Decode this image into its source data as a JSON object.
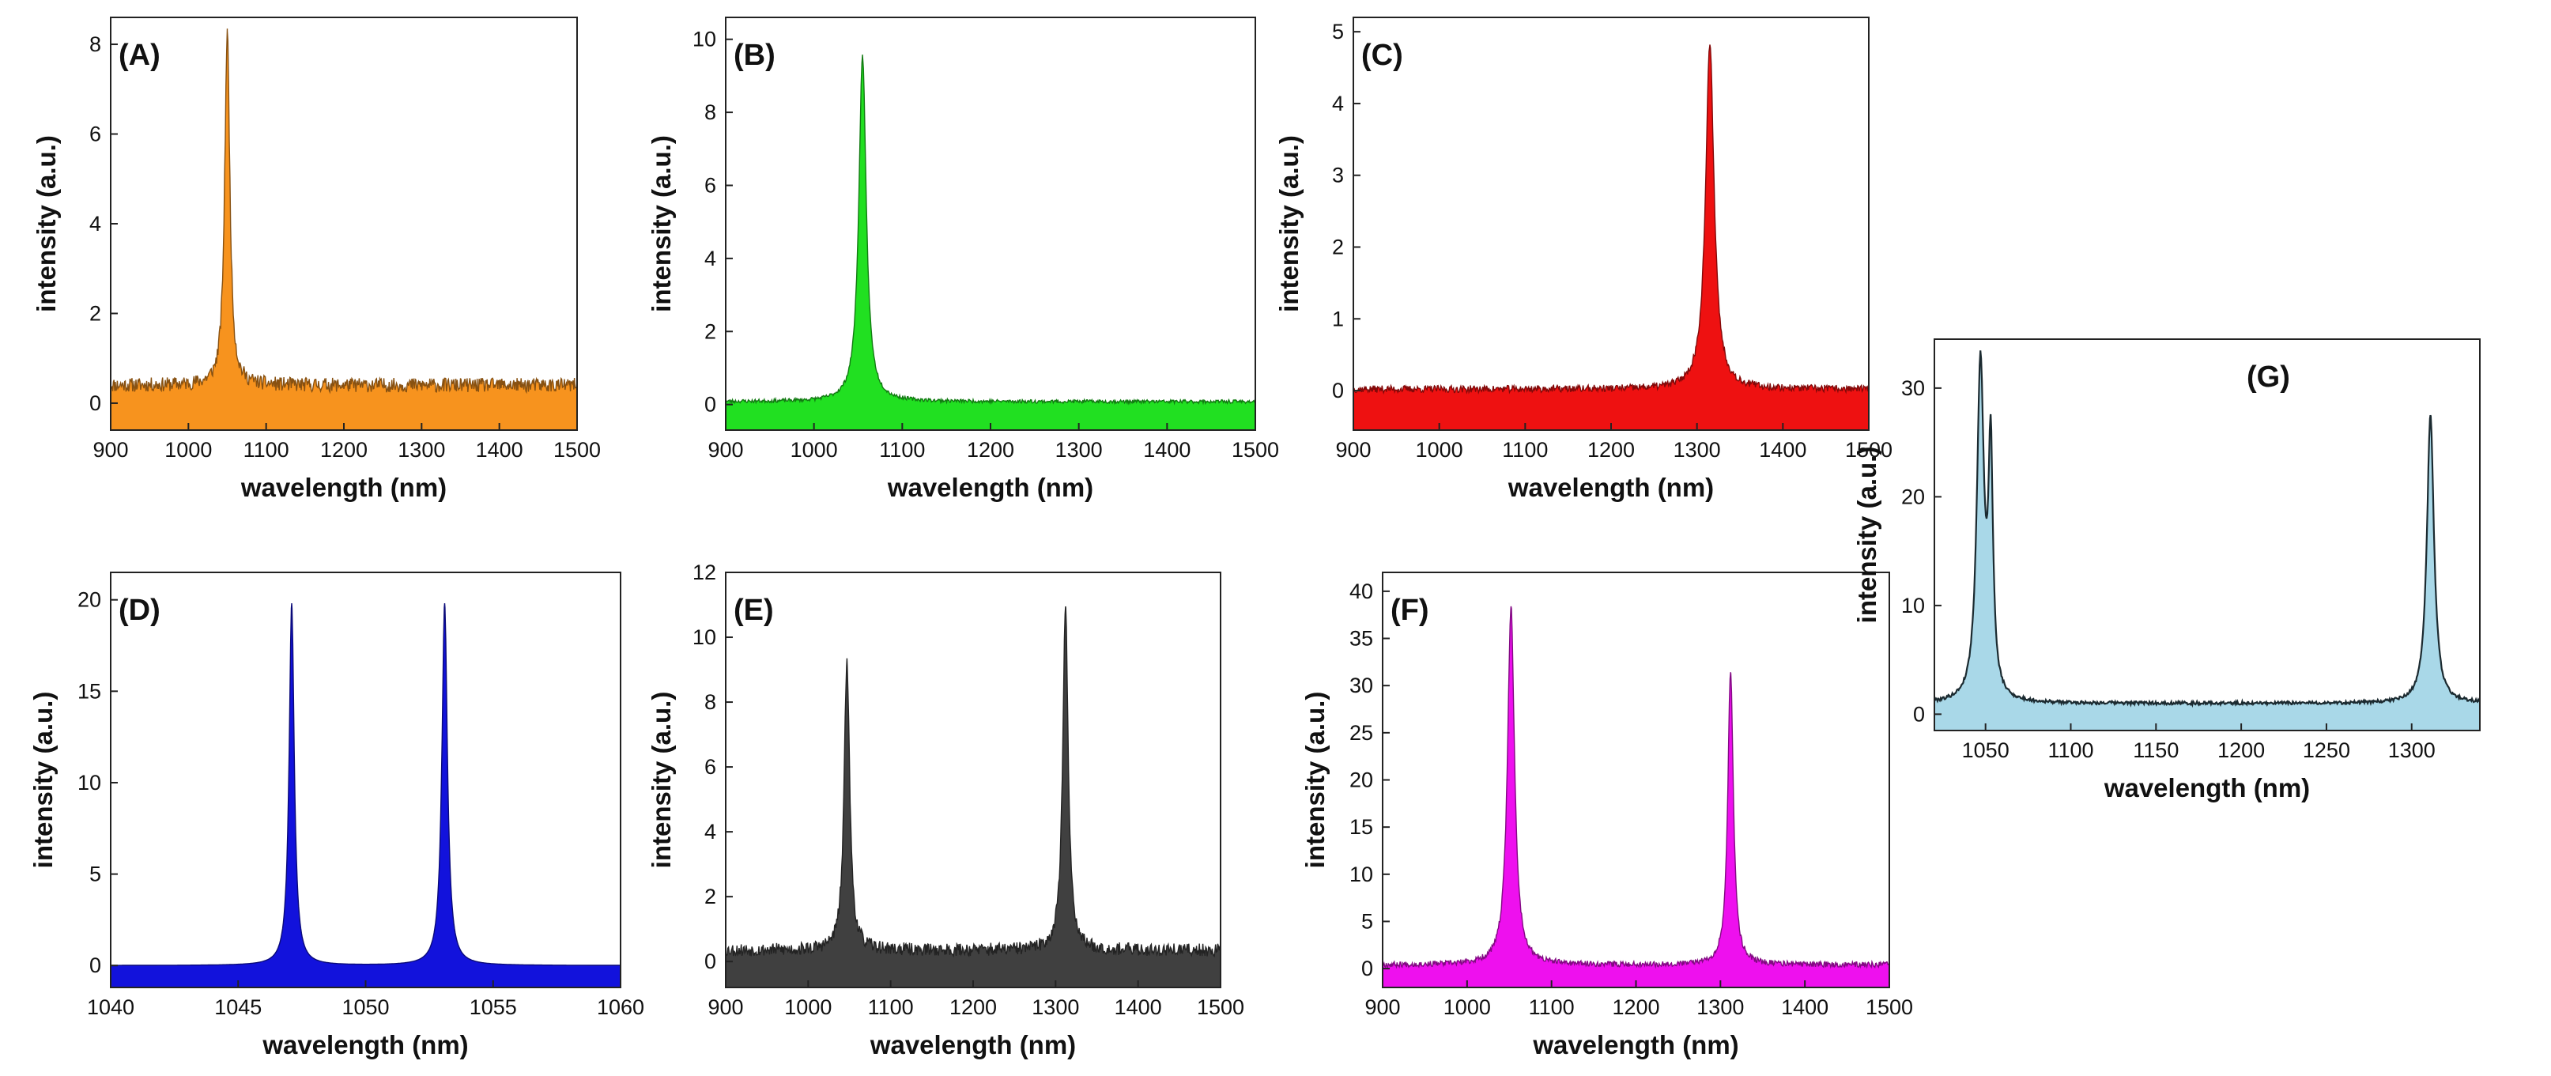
{
  "figure": {
    "background": "#ffffff"
  },
  "chart_data": [
    {
      "id": "A",
      "label": "(A)",
      "type": "area",
      "color": "#F7931E",
      "xlabel": "wavelength (nm)",
      "ylabel": "intensity (a.u.)",
      "xlim": [
        900,
        1500
      ],
      "ylim": [
        -0.6,
        8.6
      ],
      "xticks": [
        900,
        1000,
        1100,
        1200,
        1300,
        1400,
        1500
      ],
      "yticks": [
        0,
        2,
        4,
        6,
        8
      ],
      "baseline": 0.4,
      "noise": 0.16,
      "peaks": [
        {
          "x": 1050,
          "height": 7.9,
          "width": 4
        }
      ],
      "seed": 11
    },
    {
      "id": "B",
      "label": "(B)",
      "type": "area",
      "color": "#21E021",
      "xlabel": "wavelength (nm)",
      "ylabel": "intensity (a.u.)",
      "xlim": [
        900,
        1500
      ],
      "ylim": [
        -0.7,
        10.6
      ],
      "xticks": [
        900,
        1000,
        1100,
        1200,
        1300,
        1400,
        1500
      ],
      "yticks": [
        0,
        2,
        4,
        6,
        8,
        10
      ],
      "baseline": 0.08,
      "noise": 0.05,
      "peaks": [
        {
          "x": 1055,
          "height": 9.5,
          "width": 5
        }
      ],
      "seed": 23
    },
    {
      "id": "C",
      "label": "(C)",
      "type": "area",
      "color": "#EE1111",
      "xlabel": "wavelength (nm)",
      "ylabel": "intensity (a.u.)",
      "xlim": [
        900,
        1500
      ],
      "ylim": [
        -0.55,
        5.2
      ],
      "xticks": [
        900,
        1000,
        1100,
        1200,
        1300,
        1400,
        1500
      ],
      "yticks": [
        0,
        1,
        2,
        3,
        4,
        5
      ],
      "baseline": 0.02,
      "noise": 0.05,
      "peaks": [
        {
          "x": 1315,
          "height": 4.8,
          "width": 6
        }
      ],
      "seed": 37
    },
    {
      "id": "D",
      "label": "(D)",
      "type": "area",
      "color": "#1212DC",
      "xlabel": "wavelength (nm)",
      "ylabel": "intensity (a.u.)",
      "xlim": [
        1040,
        1060
      ],
      "ylim": [
        -1.2,
        21.5
      ],
      "xticks": [
        1040,
        1045,
        1050,
        1055,
        1060
      ],
      "yticks": [
        0,
        5,
        10,
        15,
        20
      ],
      "baseline": 0.0,
      "noise": 0.0,
      "peaks": [
        {
          "x": 1047.1,
          "height": 19.8,
          "width": 0.12
        },
        {
          "x": 1053.1,
          "height": 19.8,
          "width": 0.13
        }
      ],
      "seed": 41
    },
    {
      "id": "E",
      "label": "(E)",
      "type": "area",
      "color": "#404040",
      "xlabel": "wavelength (nm)",
      "ylabel": "intensity (a.u.)",
      "xlim": [
        900,
        1500
      ],
      "ylim": [
        -0.8,
        12.0
      ],
      "xticks": [
        900,
        1000,
        1100,
        1200,
        1300,
        1400,
        1500
      ],
      "yticks": [
        0,
        2,
        4,
        6,
        8,
        10,
        12
      ],
      "baseline": 0.35,
      "noise": 0.2,
      "peaks": [
        {
          "x": 1047,
          "height": 9.0,
          "width": 4
        },
        {
          "x": 1312,
          "height": 10.6,
          "width": 4
        }
      ],
      "seed": 53
    },
    {
      "id": "F",
      "label": "(F)",
      "type": "area",
      "color": "#EE10EE",
      "xlabel": "wavelength (nm)",
      "ylabel": "intensity (a.u.)",
      "xlim": [
        900,
        1500
      ],
      "ylim": [
        -2.0,
        42.0
      ],
      "xticks": [
        900,
        1000,
        1100,
        1200,
        1300,
        1400,
        1500
      ],
      "yticks": [
        0,
        5,
        10,
        15,
        20,
        25,
        30,
        35,
        40
      ],
      "baseline": 0.4,
      "noise": 0.3,
      "peaks": [
        {
          "x": 1052,
          "height": 38,
          "width": 5
        },
        {
          "x": 1312,
          "height": 31,
          "width": 4
        }
      ],
      "seed": 67
    },
    {
      "id": "G",
      "label": "(G)",
      "type": "area",
      "color": "#A9D8E8",
      "xlabel": "wavelength (nm)",
      "ylabel": "intensity (a.u.)",
      "xlim": [
        1020,
        1340
      ],
      "ylim": [
        -1.5,
        34.5
      ],
      "xticks": [
        1050,
        1100,
        1150,
        1200,
        1250,
        1300
      ],
      "yticks": [
        0,
        10,
        20,
        30
      ],
      "baseline": 1.0,
      "noise": 0.15,
      "peaks": [
        {
          "x": 1047,
          "height": 31,
          "width": 2.5
        },
        {
          "x": 1053,
          "height": 22,
          "width": 1.6
        },
        {
          "x": 1311,
          "height": 26.5,
          "width": 2.5
        }
      ],
      "seed": 79
    }
  ]
}
